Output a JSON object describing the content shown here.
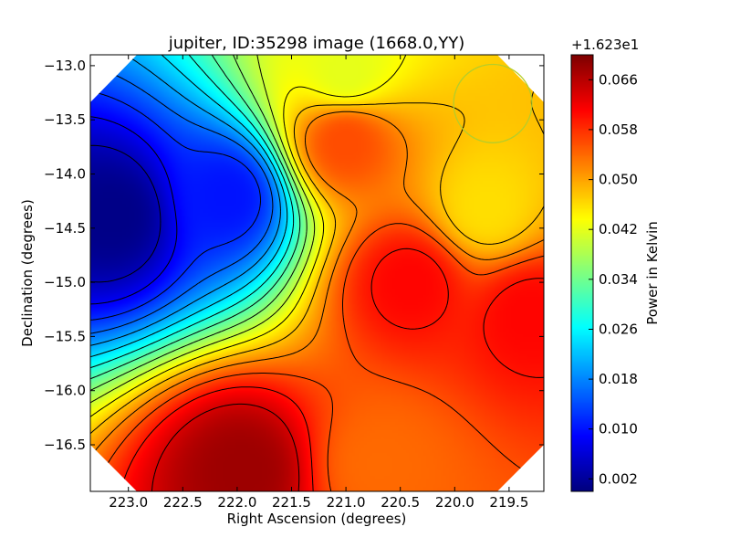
{
  "chart_data": {
    "type": "heatmap",
    "title": "jupiter, ID:35298 image (1668.0,YY)",
    "xlabel": "Right Ascension (degrees)",
    "ylabel": "Declination (degrees)",
    "x_axis_inverted": true,
    "xlim": [
      223.35,
      219.18
    ],
    "ylim": [
      -16.93,
      -12.9
    ],
    "x_ticks": [
      223.0,
      222.5,
      222.0,
      221.5,
      221.0,
      220.5,
      220.0,
      219.5
    ],
    "x_tick_labels": [
      "223.0",
      "222.5",
      "222.0",
      "221.5",
      "221.0",
      "220.5",
      "220.0",
      "219.5"
    ],
    "y_ticks": [
      -13.0,
      -13.5,
      -14.0,
      -14.5,
      -15.0,
      -15.5,
      -16.0,
      -16.5
    ],
    "y_tick_labels": [
      "−13.0",
      "−13.5",
      "−14.0",
      "−14.5",
      "−15.0",
      "−15.5",
      "−16.0",
      "−16.5"
    ],
    "colorbar": {
      "label": "Power in Kelvin",
      "offset_text": "+1.623e1",
      "colormap": "jet",
      "range": [
        0.0,
        0.07
      ],
      "ticks": [
        0.002,
        0.01,
        0.018,
        0.026,
        0.034,
        0.042,
        0.05,
        0.058,
        0.066
      ],
      "tick_labels": [
        "0.002",
        "0.010",
        "0.018",
        "0.026",
        "0.034",
        "0.042",
        "0.050",
        "0.058",
        "0.066"
      ]
    },
    "field_features": [
      {
        "ra": 223.15,
        "dec": -14.38,
        "value": 0.0005,
        "kind": "minimum"
      },
      {
        "ra": 222.1,
        "dec": -14.2,
        "value": 0.01,
        "kind": "low"
      },
      {
        "ra": 221.95,
        "dec": -16.75,
        "value": 0.068,
        "kind": "maximum"
      },
      {
        "ra": 220.4,
        "dec": -15.0,
        "value": 0.061,
        "kind": "high"
      },
      {
        "ra": 219.3,
        "dec": -15.3,
        "value": 0.061,
        "kind": "high"
      },
      {
        "ra": 221.0,
        "dec": -13.7,
        "value": 0.056,
        "kind": "high"
      },
      {
        "ra": 219.7,
        "dec": -14.3,
        "value": 0.046,
        "kind": "local-low"
      },
      {
        "ra": 220.7,
        "dec": -16.7,
        "value": 0.054,
        "kind": "saddle"
      },
      {
        "ra": 221.0,
        "dec": -13.05,
        "value": 0.042,
        "kind": "mid"
      }
    ],
    "contour_levels": [
      0.004,
      0.008,
      0.012,
      0.016,
      0.02,
      0.024,
      0.028,
      0.032,
      0.036,
      0.04,
      0.044,
      0.048,
      0.052,
      0.056,
      0.06,
      0.064
    ],
    "circle_marker": {
      "ra": 219.65,
      "dec": -13.35,
      "radius_deg": 0.36,
      "color": "#b5cd2a"
    },
    "grid": false,
    "legend": "none"
  }
}
